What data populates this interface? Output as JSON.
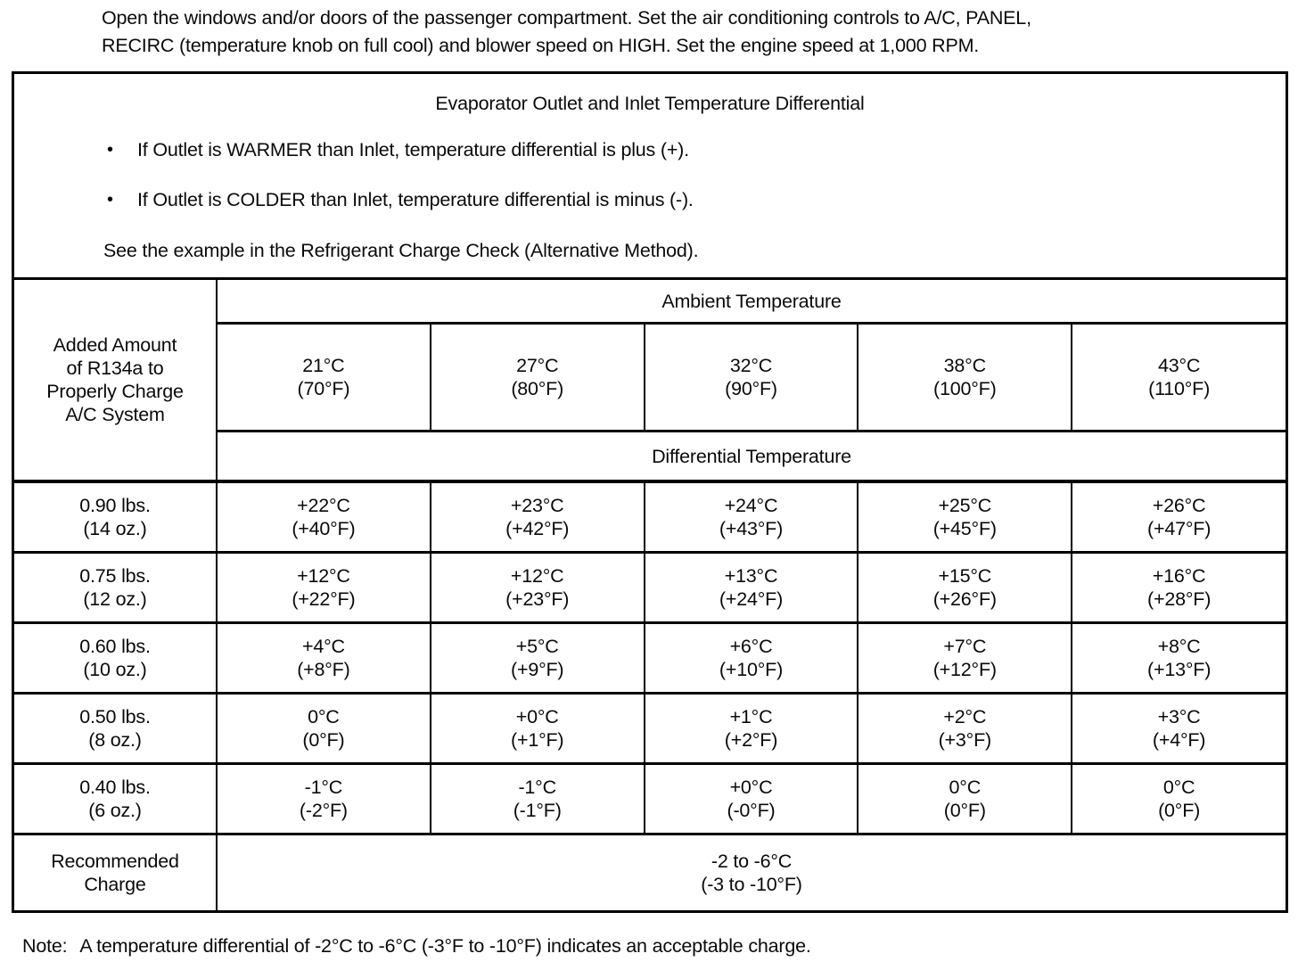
{
  "intro": {
    "line1": "Open the windows and/or doors of the passenger compartment. Set the air conditioning controls to A/C, PANEL,",
    "line2": "RECIRC (temperature knob on full cool) and blower speed on HIGH. Set the engine speed at 1,000 RPM."
  },
  "info_box": {
    "title": "Evaporator Outlet and Inlet Temperature Differential",
    "bullet_glyph": "•",
    "bullets": [
      "If Outlet is WARMER than Inlet, temperature differential is plus (+).",
      "If Outlet is COLDER than Inlet, temperature differential is minus (-)."
    ],
    "see_example": "See the example in the Refrigerant Charge Check (Alternative Method)."
  },
  "table": {
    "row_header_lines": [
      "Added Amount",
      "of R134a to",
      "Properly Charge",
      "A/C System"
    ],
    "ambient_header": "Ambient Temperature",
    "differential_header": "Differential Temperature",
    "ambient_temps": [
      {
        "c": "21°C",
        "f": "(70°F)"
      },
      {
        "c": "27°C",
        "f": "(80°F)"
      },
      {
        "c": "32°C",
        "f": "(90°F)"
      },
      {
        "c": "38°C",
        "f": "(100°F)"
      },
      {
        "c": "43°C",
        "f": "(110°F)"
      }
    ],
    "rows": [
      {
        "amount": "0.90 lbs.",
        "oz": "(14 oz.)",
        "values": [
          {
            "c": "+22°C",
            "f": "(+40°F)"
          },
          {
            "c": "+23°C",
            "f": "(+42°F)"
          },
          {
            "c": "+24°C",
            "f": "(+43°F)"
          },
          {
            "c": "+25°C",
            "f": "(+45°F)"
          },
          {
            "c": "+26°C",
            "f": "(+47°F)"
          }
        ]
      },
      {
        "amount": "0.75 lbs.",
        "oz": "(12 oz.)",
        "values": [
          {
            "c": "+12°C",
            "f": "(+22°F)"
          },
          {
            "c": "+12°C",
            "f": "(+23°F)"
          },
          {
            "c": "+13°C",
            "f": "(+24°F)"
          },
          {
            "c": "+15°C",
            "f": "(+26°F)"
          },
          {
            "c": "+16°C",
            "f": "(+28°F)"
          }
        ]
      },
      {
        "amount": "0.60 lbs.",
        "oz": "(10 oz.)",
        "values": [
          {
            "c": "+4°C",
            "f": "(+8°F)"
          },
          {
            "c": "+5°C",
            "f": "(+9°F)"
          },
          {
            "c": "+6°C",
            "f": "(+10°F)"
          },
          {
            "c": "+7°C",
            "f": "(+12°F)"
          },
          {
            "c": "+8°C",
            "f": "(+13°F)"
          }
        ]
      },
      {
        "amount": "0.50 lbs.",
        "oz": "(8 oz.)",
        "values": [
          {
            "c": "0°C",
            "f": "(0°F)"
          },
          {
            "c": "+0°C",
            "f": "(+1°F)"
          },
          {
            "c": "+1°C",
            "f": "(+2°F)"
          },
          {
            "c": "+2°C",
            "f": "(+3°F)"
          },
          {
            "c": "+3°C",
            "f": "(+4°F)"
          }
        ]
      },
      {
        "amount": "0.40 lbs.",
        "oz": "(6 oz.)",
        "values": [
          {
            "c": "-1°C",
            "f": "(-2°F)"
          },
          {
            "c": "-1°C",
            "f": "(-1°F)"
          },
          {
            "c": "+0°C",
            "f": "(-0°F)"
          },
          {
            "c": "0°C",
            "f": "(0°F)"
          },
          {
            "c": "0°C",
            "f": "(0°F)"
          }
        ]
      }
    ],
    "recommended": {
      "label_line1": "Recommended",
      "label_line2": "Charge",
      "value_c": "-2 to -6°C",
      "value_f": "(-3 to -10°F)"
    }
  },
  "note": {
    "label": "Note:",
    "text": "A temperature differential of -2°C to -6°C (-3°F to -10°F) indicates an acceptable charge."
  }
}
